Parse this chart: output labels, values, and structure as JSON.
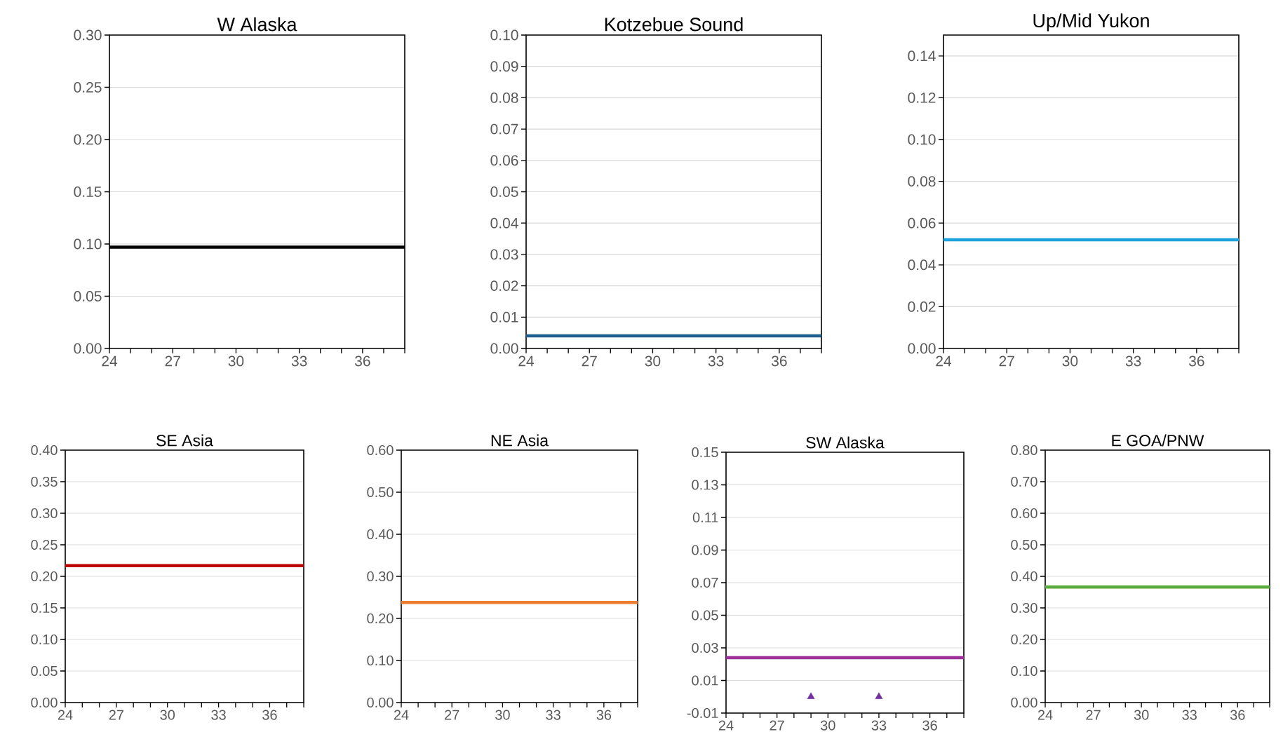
{
  "chart_data": [
    {
      "type": "line",
      "title": "W Alaska",
      "xlim": [
        24,
        38
      ],
      "ylim": [
        0,
        0.3
      ],
      "grid": "y",
      "xticks": [
        24,
        {
          "value": 25,
          "label": null
        },
        {
          "value": 26,
          "label": null
        },
        27,
        {
          "value": 28,
          "label": null
        },
        {
          "value": 29,
          "label": null
        },
        30,
        {
          "value": 31,
          "label": null
        },
        {
          "value": 32,
          "label": null
        },
        33,
        {
          "value": 34,
          "label": null
        },
        {
          "value": 35,
          "label": null
        },
        36,
        {
          "value": 37,
          "label": null
        },
        {
          "value": 38,
          "label": null
        }
      ],
      "yticks": [
        {
          "value": 0,
          "label": "0.00"
        },
        {
          "value": 0.05,
          "label": "0.05"
        },
        {
          "value": 0.1,
          "label": "0.10"
        },
        {
          "value": 0.15,
          "label": "0.15"
        },
        {
          "value": 0.2,
          "label": "0.20"
        },
        {
          "value": 0.25,
          "label": "0.25"
        },
        {
          "value": 0.3,
          "label": "0.30"
        }
      ],
      "series": [
        {
          "color": "#000000",
          "x": [
            24,
            38
          ],
          "values": [
            0.097,
            0.097
          ]
        }
      ]
    },
    {
      "type": "line",
      "title": "Kotzebue Sound",
      "xlim": [
        24,
        38
      ],
      "ylim": [
        0,
        0.1
      ],
      "grid": "y",
      "xticks": [
        24,
        {
          "value": 25,
          "label": null
        },
        {
          "value": 26,
          "label": null
        },
        27,
        {
          "value": 28,
          "label": null
        },
        {
          "value": 29,
          "label": null
        },
        30,
        {
          "value": 31,
          "label": null
        },
        {
          "value": 32,
          "label": null
        },
        33,
        {
          "value": 34,
          "label": null
        },
        {
          "value": 35,
          "label": null
        },
        36,
        {
          "value": 37,
          "label": null
        },
        {
          "value": 38,
          "label": null
        }
      ],
      "yticks": [
        {
          "value": 0,
          "label": "0.00"
        },
        {
          "value": 0.01,
          "label": "0.01"
        },
        {
          "value": 0.02,
          "label": "0.02"
        },
        {
          "value": 0.03,
          "label": "0.03"
        },
        {
          "value": 0.04,
          "label": "0.04"
        },
        {
          "value": 0.05,
          "label": "0.05"
        },
        {
          "value": 0.06,
          "label": "0.06"
        },
        {
          "value": 0.07,
          "label": "0.07"
        },
        {
          "value": 0.08,
          "label": "0.08"
        },
        {
          "value": 0.09,
          "label": "0.09"
        },
        {
          "value": 0.1,
          "label": "0.10"
        }
      ],
      "series": [
        {
          "color": "#1f5f8b",
          "x": [
            24,
            38
          ],
          "values": [
            0.004,
            0.004
          ]
        }
      ]
    },
    {
      "type": "line",
      "title": "Up/Mid Yukon",
      "xlim": [
        24,
        38
      ],
      "ylim": [
        0,
        0.15
      ],
      "grid": "y",
      "xticks": [
        24,
        {
          "value": 25,
          "label": null
        },
        {
          "value": 26,
          "label": null
        },
        27,
        {
          "value": 28,
          "label": null
        },
        {
          "value": 29,
          "label": null
        },
        30,
        {
          "value": 31,
          "label": null
        },
        {
          "value": 32,
          "label": null
        },
        33,
        {
          "value": 34,
          "label": null
        },
        {
          "value": 35,
          "label": null
        },
        36,
        {
          "value": 37,
          "label": null
        },
        {
          "value": 38,
          "label": null
        }
      ],
      "yticks": [
        {
          "value": 0,
          "label": "0.00"
        },
        {
          "value": 0.02,
          "label": "0.02"
        },
        {
          "value": 0.04,
          "label": "0.04"
        },
        {
          "value": 0.06,
          "label": "0.06"
        },
        {
          "value": 0.08,
          "label": "0.08"
        },
        {
          "value": 0.1,
          "label": "0.10"
        },
        {
          "value": 0.12,
          "label": "0.12"
        },
        {
          "value": 0.14,
          "label": "0.14"
        }
      ],
      "series": [
        {
          "color": "#1ba1dc",
          "x": [
            24,
            38
          ],
          "values": [
            0.052,
            0.052
          ]
        }
      ]
    },
    {
      "type": "line",
      "title": "SE Asia",
      "xlim": [
        24,
        38
      ],
      "ylim": [
        0,
        0.4
      ],
      "grid": "y",
      "xticks": [
        24,
        {
          "value": 25,
          "label": null
        },
        {
          "value": 26,
          "label": null
        },
        27,
        {
          "value": 28,
          "label": null
        },
        {
          "value": 29,
          "label": null
        },
        30,
        {
          "value": 31,
          "label": null
        },
        {
          "value": 32,
          "label": null
        },
        33,
        {
          "value": 34,
          "label": null
        },
        {
          "value": 35,
          "label": null
        },
        36,
        {
          "value": 37,
          "label": null
        },
        {
          "value": 38,
          "label": null
        }
      ],
      "yticks": [
        {
          "value": 0,
          "label": "0.00"
        },
        {
          "value": 0.05,
          "label": "0.05"
        },
        {
          "value": 0.1,
          "label": "0.10"
        },
        {
          "value": 0.15,
          "label": "0.15"
        },
        {
          "value": 0.2,
          "label": "0.20"
        },
        {
          "value": 0.25,
          "label": "0.25"
        },
        {
          "value": 0.3,
          "label": "0.30"
        },
        {
          "value": 0.35,
          "label": "0.35"
        },
        {
          "value": 0.4,
          "label": "0.40"
        }
      ],
      "series": [
        {
          "color": "#c00000",
          "x": [
            24,
            38
          ],
          "values": [
            0.217,
            0.217
          ]
        }
      ]
    },
    {
      "type": "line",
      "title": "NE Asia",
      "xlim": [
        24,
        38
      ],
      "ylim": [
        0,
        0.6
      ],
      "grid": "y",
      "xticks": [
        24,
        {
          "value": 25,
          "label": null
        },
        {
          "value": 26,
          "label": null
        },
        27,
        {
          "value": 28,
          "label": null
        },
        {
          "value": 29,
          "label": null
        },
        30,
        {
          "value": 31,
          "label": null
        },
        {
          "value": 32,
          "label": null
        },
        33,
        {
          "value": 34,
          "label": null
        },
        {
          "value": 35,
          "label": null
        },
        36,
        {
          "value": 37,
          "label": null
        },
        {
          "value": 38,
          "label": null
        }
      ],
      "yticks": [
        {
          "value": 0,
          "label": "0.00"
        },
        {
          "value": 0.1,
          "label": "0.10"
        },
        {
          "value": 0.2,
          "label": "0.20"
        },
        {
          "value": 0.3,
          "label": "0.30"
        },
        {
          "value": 0.4,
          "label": "0.40"
        },
        {
          "value": 0.5,
          "label": "0.50"
        },
        {
          "value": 0.6,
          "label": "0.60"
        }
      ],
      "series": [
        {
          "color": "#ed7d31",
          "x": [
            24,
            38
          ],
          "values": [
            0.238,
            0.238
          ]
        }
      ]
    },
    {
      "type": "line",
      "title": "SW Alaska",
      "xlim": [
        24,
        38
      ],
      "ylim": [
        -0.01,
        0.15
      ],
      "grid": "y",
      "xticks": [
        24,
        {
          "value": 25,
          "label": null
        },
        {
          "value": 26,
          "label": null
        },
        27,
        {
          "value": 28,
          "label": null
        },
        {
          "value": 29,
          "label": null
        },
        30,
        {
          "value": 31,
          "label": null
        },
        {
          "value": 32,
          "label": null
        },
        33,
        {
          "value": 34,
          "label": null
        },
        {
          "value": 35,
          "label": null
        },
        36,
        {
          "value": 37,
          "label": null
        },
        {
          "value": 38,
          "label": null
        }
      ],
      "yticks": [
        {
          "value": -0.01,
          "label": "-0.01"
        },
        {
          "value": 0.01,
          "label": "0.01"
        },
        {
          "value": 0.03,
          "label": "0.03"
        },
        {
          "value": 0.05,
          "label": "0.05"
        },
        {
          "value": 0.07,
          "label": "0.07"
        },
        {
          "value": 0.09,
          "label": "0.09"
        },
        {
          "value": 0.11,
          "label": "0.11"
        },
        {
          "value": 0.13,
          "label": "0.13"
        },
        {
          "value": 0.15,
          "label": "0.15"
        }
      ],
      "series": [
        {
          "color": "#a0309a",
          "x": [
            24,
            38
          ],
          "values": [
            0.024,
            0.024
          ]
        },
        {
          "type": "scatter",
          "marker": "triangle",
          "color": "#7030a0",
          "x": [
            29,
            33
          ],
          "values": [
            0,
            0
          ]
        }
      ]
    },
    {
      "type": "line",
      "title": "E GOA/PNW",
      "xlim": [
        24,
        38
      ],
      "ylim": [
        0,
        0.8
      ],
      "grid": "y",
      "xticks": [
        24,
        {
          "value": 25,
          "label": null
        },
        {
          "value": 26,
          "label": null
        },
        27,
        {
          "value": 28,
          "label": null
        },
        {
          "value": 29,
          "label": null
        },
        30,
        {
          "value": 31,
          "label": null
        },
        {
          "value": 32,
          "label": null
        },
        33,
        {
          "value": 34,
          "label": null
        },
        {
          "value": 35,
          "label": null
        },
        36,
        {
          "value": 37,
          "label": null
        },
        {
          "value": 38,
          "label": null
        }
      ],
      "yticks": [
        {
          "value": 0,
          "label": "0.00"
        },
        {
          "value": 0.1,
          "label": "0.10"
        },
        {
          "value": 0.2,
          "label": "0.20"
        },
        {
          "value": 0.3,
          "label": "0.30"
        },
        {
          "value": 0.4,
          "label": "0.40"
        },
        {
          "value": 0.5,
          "label": "0.50"
        },
        {
          "value": 0.6,
          "label": "0.60"
        },
        {
          "value": 0.7,
          "label": "0.70"
        },
        {
          "value": 0.8,
          "label": "0.80"
        }
      ],
      "series": [
        {
          "color": "#5aac3a",
          "x": [
            24,
            38
          ],
          "values": [
            0.366,
            0.366
          ]
        }
      ]
    }
  ]
}
